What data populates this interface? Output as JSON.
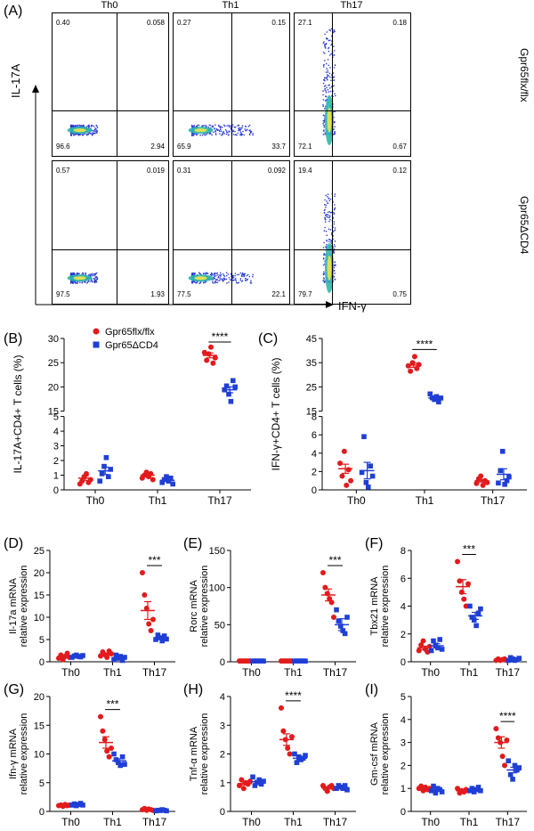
{
  "panels": {
    "A": "(A)",
    "B": "(B)",
    "C": "(C)",
    "D": "(D)",
    "E": "(E)",
    "F": "(F)",
    "G": "(G)",
    "H": "(H)",
    "I": "(I)"
  },
  "flow": {
    "col_titles": [
      "Th0",
      "Th1",
      "Th17"
    ],
    "row_titles": [
      "Gpr65flx/flx",
      "Gpr65ΔCD4"
    ],
    "y_axis_label": "IL-17A",
    "x_axis_label": "IFN-γ",
    "quadrants": [
      [
        [
          "0.40",
          "0.058",
          "96.6",
          "2.94"
        ],
        [
          "0.27",
          "0.15",
          "65.9",
          "33.7"
        ],
        [
          "27.1",
          "0.18",
          "72.1",
          "0.67"
        ]
      ],
      [
        [
          "0.57",
          "0.019",
          "97.5",
          "1.93"
        ],
        [
          "0.31",
          "0.092",
          "77.5",
          "22.1"
        ],
        [
          "19.4",
          "0.12",
          "79.7",
          "0.75"
        ]
      ]
    ]
  },
  "legend": {
    "wt": "Gpr65flx/flx",
    "ko": "Gpr65ΔCD4",
    "wt_color": "#e31a1c",
    "ko_color": "#1f3fd6"
  },
  "chart_data": [
    {
      "id": "B",
      "type": "scatter",
      "ylabel": "IL-17A+CD4+ T cells (%)",
      "categories": [
        "Th0",
        "Th1",
        "Th17"
      ],
      "broken_axis": {
        "lower": [
          0,
          5
        ],
        "upper": [
          15,
          30
        ]
      },
      "upper_ticks": [
        15,
        20,
        25,
        30
      ],
      "lower_ticks": [
        0,
        1,
        2,
        3,
        4,
        5
      ],
      "series": [
        {
          "name": "Gpr65flx/flx",
          "values": [
            [
              0.4,
              0.6,
              0.9,
              1.1,
              0.5,
              0.7
            ],
            [
              0.8,
              1.0,
              1.2,
              0.9,
              1.1,
              0.7
            ],
            [
              27.1,
              25.5,
              26.8,
              28.2,
              24.9,
              26.0
            ]
          ],
          "mean": [
            0.8,
            1.0,
            26.5
          ],
          "sem": [
            0.15,
            0.1,
            0.5
          ]
        },
        {
          "name": "Gpr65ΔCD4",
          "values": [
            [
              0.6,
              1.1,
              1.6,
              2.2,
              0.9,
              1.4
            ],
            [
              0.5,
              0.7,
              0.9,
              0.6,
              0.8,
              0.4
            ],
            [
              19.4,
              20.2,
              18.5,
              17.0,
              21.3,
              20.0
            ]
          ],
          "mean": [
            1.3,
            0.65,
            19.4
          ],
          "sem": [
            0.25,
            0.08,
            0.6
          ]
        }
      ],
      "sig": [
        {
          "group": "Th17",
          "text": "****"
        }
      ]
    },
    {
      "id": "C",
      "type": "scatter",
      "ylabel": "IFN-γ+CD4+ T cells (%)",
      "categories": [
        "Th0",
        "Th1",
        "Th17"
      ],
      "broken_axis": {
        "lower": [
          0,
          8
        ],
        "upper": [
          15,
          45
        ]
      },
      "upper_ticks": [
        15,
        25,
        35,
        45
      ],
      "lower_ticks": [
        0,
        2,
        4,
        6,
        8
      ],
      "series": [
        {
          "name": "Gpr65flx/flx",
          "values": [
            [
              2.9,
              1.5,
              4.2,
              0.5,
              2.2,
              1.0
            ],
            [
              33.7,
              31.5,
              35.0,
              37.5,
              32.6,
              34.2
            ],
            [
              0.7,
              1.2,
              1.5,
              0.5,
              1.0,
              0.8
            ]
          ],
          "mean": [
            2.3,
            34.0,
            1.0
          ],
          "sem": [
            0.5,
            0.9,
            0.15
          ]
        },
        {
          "name": "Gpr65ΔCD4",
          "values": [
            [
              1.9,
              5.8,
              0.8,
              0.3,
              2.6,
              1.5
            ],
            [
              22.1,
              20.5,
              19.8,
              21.0,
              18.8,
              20.4
            ],
            [
              0.75,
              2.1,
              4.2,
              0.6,
              1.0,
              1.4
            ]
          ],
          "mean": [
            2.1,
            20.4,
            1.7
          ],
          "sem": [
            0.9,
            0.5,
            0.6
          ]
        }
      ],
      "sig": [
        {
          "group": "Th1",
          "text": "****"
        }
      ]
    },
    {
      "id": "D",
      "type": "scatter",
      "ylabel": "Il-17a mRNA relative expression",
      "categories": [
        "Th0",
        "Th1",
        "Th17"
      ],
      "ylim": [
        0,
        25
      ],
      "ticks": [
        0,
        5,
        10,
        15,
        20,
        25
      ],
      "series": [
        {
          "name": "Gpr65flx/flx",
          "values": [
            [
              0.8,
              1.5,
              0.5,
              1.2,
              1.9,
              1.0
            ],
            [
              1.3,
              2.2,
              1.6,
              1.0,
              2.4,
              1.8
            ],
            [
              20.0,
              15.0,
              12.0,
              8.5,
              7.0,
              9.5
            ]
          ],
          "mean": [
            1.1,
            1.7,
            11.5
          ],
          "sem": [
            0.2,
            0.2,
            2.0
          ]
        },
        {
          "name": "Gpr65ΔCD4",
          "values": [
            [
              1.0,
              1.3,
              1.5,
              1.2,
              1.1,
              1.4
            ],
            [
              0.5,
              1.5,
              0.8,
              1.2,
              0.3,
              1.0
            ],
            [
              5.0,
              6.0,
              5.4,
              4.7,
              5.8,
              5.1
            ]
          ],
          "mean": [
            1.25,
            0.9,
            5.3
          ],
          "sem": [
            0.08,
            0.2,
            0.3
          ]
        }
      ],
      "sig": [
        {
          "group": "Th17",
          "text": "***"
        }
      ]
    },
    {
      "id": "E",
      "type": "scatter",
      "ylabel": "Rorc mRNA relative expression",
      "categories": [
        "Th0",
        "Th1",
        "Th17"
      ],
      "ylim": [
        0,
        150
      ],
      "ticks": [
        0,
        50,
        100,
        150
      ],
      "series": [
        {
          "name": "Gpr65flx/flx",
          "values": [
            [
              1,
              1,
              1,
              1,
              1,
              1
            ],
            [
              1,
              1,
              1,
              1,
              1,
              1
            ],
            [
              120,
              100,
              92,
              85,
              80,
              60
            ]
          ],
          "mean": [
            1,
            1,
            90
          ],
          "sem": [
            0,
            0,
            8
          ]
        },
        {
          "name": "Gpr65ΔCD4",
          "values": [
            [
              1,
              1,
              1,
              1,
              1,
              1
            ],
            [
              1,
              1,
              1,
              1,
              1,
              1
            ],
            [
              70,
              55,
              48,
              42,
              38,
              60
            ]
          ],
          "mean": [
            1,
            1,
            50
          ],
          "sem": [
            0,
            0,
            8
          ]
        }
      ],
      "sig": [
        {
          "group": "Th17",
          "text": "***"
        }
      ]
    },
    {
      "id": "F",
      "type": "scatter",
      "ylabel": "Tbx21 mRNA relative expression",
      "categories": [
        "Th0",
        "Th1",
        "Th17"
      ],
      "ylim": [
        0,
        8
      ],
      "ticks": [
        0,
        2,
        4,
        6,
        8
      ],
      "series": [
        {
          "name": "Gpr65flx/flx",
          "values": [
            [
              0.8,
              1.2,
              1.5,
              0.9,
              0.7,
              1.1
            ],
            [
              7.2,
              5.8,
              5.0,
              4.5,
              4.0,
              5.6
            ],
            [
              0.1,
              0.2,
              0.1,
              0.15,
              0.2,
              0.1
            ]
          ],
          "mean": [
            1.0,
            5.4,
            0.15
          ],
          "sem": [
            0.12,
            0.5,
            0.02
          ]
        },
        {
          "name": "Gpr65ΔCD4",
          "values": [
            [
              0.8,
              1.5,
              1.2,
              1.0,
              1.6,
              0.9
            ],
            [
              4.0,
              3.2,
              3.0,
              2.6,
              3.5,
              3.8
            ],
            [
              0.1,
              0.3,
              0.2,
              0.1,
              0.15,
              0.25
            ]
          ],
          "mean": [
            1.15,
            3.3,
            0.2
          ],
          "sem": [
            0.15,
            0.25,
            0.03
          ]
        }
      ],
      "sig": [
        {
          "group": "Th1",
          "text": "***"
        }
      ]
    },
    {
      "id": "G",
      "type": "scatter",
      "ylabel": "Ifn-γ mRNA relative expression",
      "categories": [
        "Th0",
        "Th1",
        "Th17"
      ],
      "ylim": [
        0,
        20
      ],
      "ticks": [
        0,
        5,
        10,
        15,
        20
      ],
      "series": [
        {
          "name": "Gpr65flx/flx",
          "values": [
            [
              1,
              1.1,
              0.9,
              1.2,
              1.0,
              1.1
            ],
            [
              16.5,
              14.0,
              12.5,
              10.5,
              9.5,
              11.0
            ],
            [
              0.3,
              0.5,
              0.2,
              0.4,
              0.3,
              0.2
            ]
          ],
          "mean": [
            1.05,
            12.0,
            0.3
          ],
          "sem": [
            0.05,
            1.0,
            0.05
          ]
        },
        {
          "name": "Gpr65ΔCD4",
          "values": [
            [
              1.1,
              1.3,
              1.0,
              1.2,
              1.4,
              1.1
            ],
            [
              10.0,
              9.0,
              8.5,
              8.0,
              9.5,
              8.2
            ],
            [
              0.1,
              0.2,
              0.15,
              0.3,
              0.2,
              0.1
            ]
          ],
          "mean": [
            1.2,
            8.8,
            0.18
          ],
          "sem": [
            0.06,
            0.35,
            0.03
          ]
        }
      ],
      "sig": [
        {
          "group": "Th1",
          "text": "***"
        }
      ]
    },
    {
      "id": "H",
      "type": "scatter",
      "ylabel": "Tnf-α mRNA relative expression",
      "categories": [
        "Th0",
        "Th1",
        "Th17"
      ],
      "ylim": [
        0,
        4
      ],
      "ticks": [
        0,
        1,
        2,
        3,
        4
      ],
      "series": [
        {
          "name": "Gpr65flx/flx",
          "values": [
            [
              0.9,
              1.1,
              0.8,
              1.0,
              0.95,
              1.05
            ],
            [
              3.6,
              2.8,
              2.5,
              2.2,
              2.0,
              2.6
            ],
            [
              0.9,
              0.8,
              0.7,
              0.85,
              0.9,
              0.8
            ]
          ],
          "mean": [
            0.97,
            2.5,
            0.82
          ],
          "sem": [
            0.05,
            0.2,
            0.03
          ]
        },
        {
          "name": "Gpr65ΔCD4",
          "values": [
            [
              1.2,
              0.9,
              1.0,
              1.1,
              0.95,
              1.05
            ],
            [
              2.0,
              1.7,
              1.9,
              1.8,
              1.85,
              1.95
            ],
            [
              0.8,
              0.9,
              0.85,
              0.8,
              0.9,
              0.75
            ]
          ],
          "mean": [
            1.03,
            1.85,
            0.83
          ],
          "sem": [
            0.05,
            0.05,
            0.03
          ]
        }
      ],
      "sig": [
        {
          "group": "Th1",
          "text": "****"
        }
      ]
    },
    {
      "id": "I",
      "type": "scatter",
      "ylabel": "Gm-csf mRNA relative expression",
      "categories": [
        "Th0",
        "Th1",
        "Th17"
      ],
      "ylim": [
        0,
        5
      ],
      "ticks": [
        0,
        1,
        2,
        3,
        4,
        5
      ],
      "series": [
        {
          "name": "Gpr65flx/flx",
          "values": [
            [
              1.0,
              1.1,
              0.9,
              1.05,
              0.95,
              1.0
            ],
            [
              1.0,
              0.8,
              0.9,
              0.85,
              0.95,
              0.9
            ],
            [
              3.6,
              3.2,
              3.0,
              2.4,
              2.0,
              3.1
            ]
          ],
          "mean": [
            1.0,
            0.9,
            3.0
          ],
          "sem": [
            0.03,
            0.03,
            0.25
          ]
        },
        {
          "name": "Gpr65ΔCD4",
          "values": [
            [
              0.9,
              1.1,
              0.8,
              1.0,
              0.95,
              0.85
            ],
            [
              0.9,
              1.0,
              0.85,
              0.95,
              1.05,
              0.9
            ],
            [
              2.2,
              1.6,
              1.4,
              2.0,
              1.8,
              1.9
            ]
          ],
          "mean": [
            0.93,
            0.94,
            1.8
          ],
          "sem": [
            0.04,
            0.03,
            0.12
          ]
        }
      ],
      "sig": [
        {
          "group": "Th17",
          "text": "****"
        }
      ]
    }
  ]
}
